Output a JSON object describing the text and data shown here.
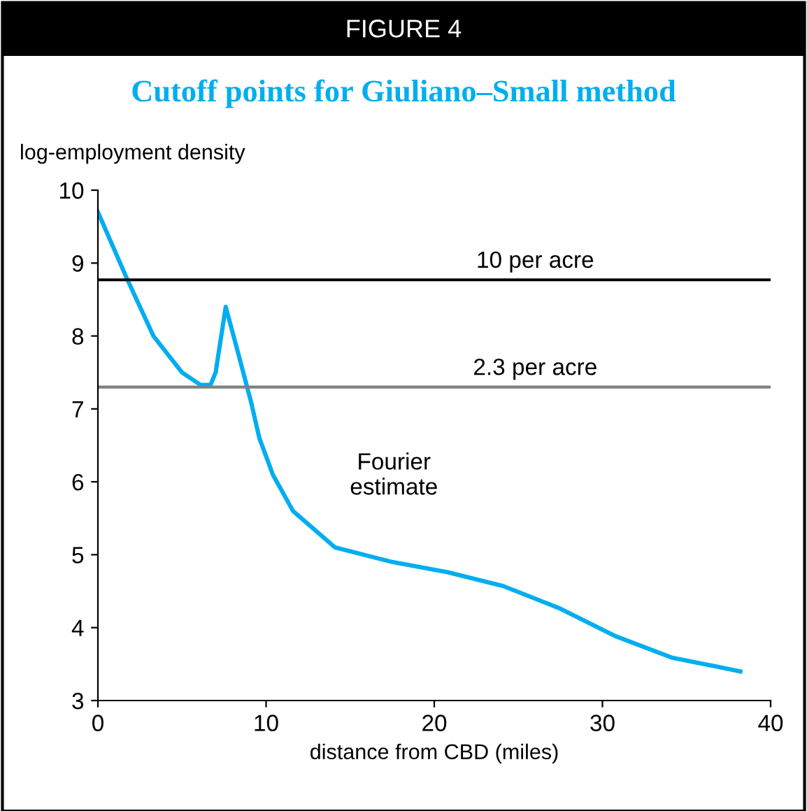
{
  "chart_data": {
    "type": "line",
    "subtitle": "FIGURE 4",
    "title": "Cutoff points for Giuliano–Small method",
    "ylabel": "log-employment density",
    "xlabel": "distance from CBD (miles)",
    "x": [
      0,
      1.7,
      3.3,
      5,
      6.1,
      6.7,
      7.0,
      7.6,
      8.3,
      9.1,
      9.6,
      10.4,
      11.6,
      14.1,
      17.5,
      20.8,
      24.1,
      27.4,
      30.8,
      34.1,
      38.2
    ],
    "series": [
      {
        "color": "#00aeef",
        "values": [
          9.7,
          8.8,
          8.0,
          7.5,
          7.33,
          7.33,
          7.5,
          8.4,
          7.8,
          7.1,
          6.6,
          6.1,
          5.6,
          5.1,
          4.9,
          4.76,
          4.57,
          4.27,
          3.88,
          3.59,
          3.4
        ]
      }
    ],
    "xlim": [
      0,
      40
    ],
    "xticks": [
      0,
      10,
      20,
      30,
      40
    ],
    "ylim": [
      3,
      10
    ],
    "yticks": [
      3,
      4,
      5,
      6,
      7,
      8,
      9,
      10
    ],
    "ref_lines": [
      {
        "axis": "y",
        "value": 8.77,
        "label": "10 per acre",
        "color": "#000000"
      },
      {
        "axis": "y",
        "value": 7.3,
        "label": "2.3 per acre",
        "color": "#808080"
      }
    ],
    "annotations": [
      "Fourier\nestimate"
    ],
    "grid": false,
    "legend": false
  }
}
